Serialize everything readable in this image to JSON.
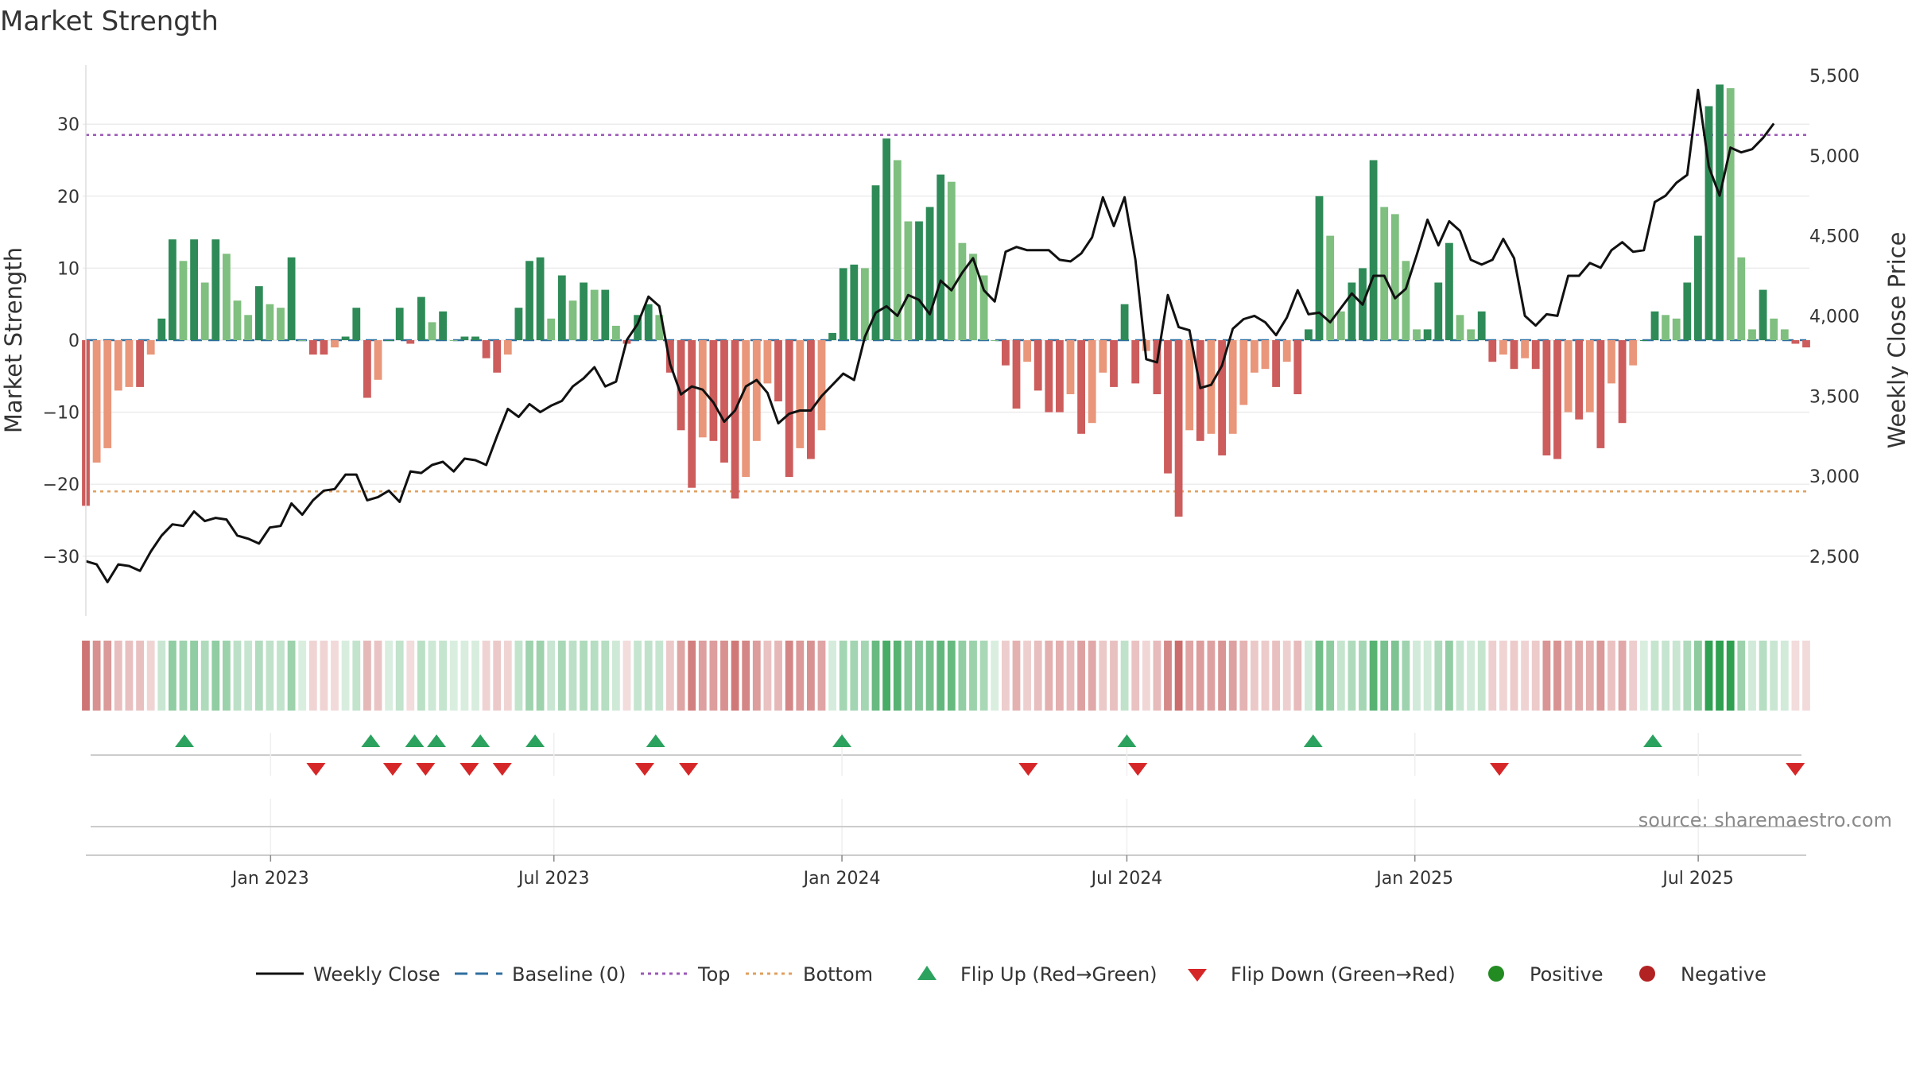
{
  "title": "Market Strength",
  "source": "source: sharemaestro.com",
  "colors": {
    "strong_green": "#2e8b57",
    "light_green": "#7fbf7f",
    "strong_red": "#cd5c5c",
    "light_red": "#e9967a",
    "top_line": "#9b59b6",
    "bottom_line": "#e0a060",
    "baseline": "#2f6f9f",
    "close_line": "#111111",
    "flip_up": "#2ca25f",
    "flip_down": "#d62728",
    "positive": "#228b22",
    "negative": "#b22222"
  },
  "legend": [
    {
      "label": "Weekly Close",
      "icon": "solid-line-icon"
    },
    {
      "label": "Baseline (0)",
      "icon": "dashed-line-icon"
    },
    {
      "label": "Top",
      "icon": "dotted-line-icon"
    },
    {
      "label": "Bottom",
      "icon": "dotted-line-icon"
    },
    {
      "label": "Flip Up (Red→Green)",
      "icon": "triangle-up-icon"
    },
    {
      "label": "Flip Down (Green→Red)",
      "icon": "triangle-down-icon"
    },
    {
      "label": "Positive",
      "icon": "circle-icon"
    },
    {
      "label": "Negative",
      "icon": "circle-icon"
    }
  ],
  "chart_data": {
    "type": "bar",
    "x_type": "weekly dates",
    "x_start": "2022-09-05",
    "x_end": "2025-09-08",
    "xtick_labels": [
      "Jan 2023",
      "Jul 2023",
      "Jan 2024",
      "Jul 2024",
      "Jan 2025",
      "Jul 2025"
    ],
    "xtick_dates": [
      "2023-01-01",
      "2023-07-01",
      "2024-01-01",
      "2024-07-01",
      "2025-01-01",
      "2025-07-01"
    ],
    "ylabel": "Market Strength",
    "ylabel_right": "Weekly Close Price",
    "ylim": [
      -38,
      38
    ],
    "yticks": [
      -30,
      -20,
      -10,
      0,
      10,
      20,
      30
    ],
    "ylim_right": [
      2110,
      5620
    ],
    "yticks_right": [
      2500,
      3000,
      3500,
      4000,
      4500,
      5000,
      5500
    ],
    "top_level": 28.5,
    "bottom_level": -21,
    "grid": true,
    "legend_position": "bottom",
    "series": [
      {
        "name": "Market Strength",
        "type": "bar",
        "values": [
          -23,
          -17,
          -15,
          -7,
          -6.5,
          -6.5,
          -2,
          3,
          14,
          11,
          14,
          8,
          14,
          12,
          5.5,
          3.5,
          7.5,
          5,
          4.5,
          11.5,
          0,
          -2,
          -2,
          -1,
          0.5,
          4.5,
          -8,
          -5.5,
          0,
          4.5,
          -0.5,
          6,
          2.5,
          4,
          0,
          0.5,
          0.5,
          -2.5,
          -4.5,
          -2,
          4.5,
          11,
          11.5,
          3,
          9,
          5.5,
          8,
          7,
          7,
          2,
          -0.5,
          3.5,
          5,
          3.5,
          -4.5,
          -12.5,
          -20.5,
          -13.5,
          -14,
          -17,
          -22,
          -19,
          -14,
          -6,
          -8.5,
          -19,
          -15,
          -16.5,
          -12.5,
          1,
          10,
          10.5,
          10,
          21.5,
          28,
          25,
          16.5,
          16.5,
          18.5,
          23,
          22,
          13.5,
          12,
          9,
          0,
          -3.5,
          -9.5,
          -3,
          -7,
          -10,
          -10,
          -7.5,
          -13,
          -11.5,
          -4.5,
          -6.5,
          5,
          -6,
          -1.5,
          -7.5,
          -18.5,
          -24.5,
          -12.5,
          -14,
          -13,
          -16,
          -13,
          -9,
          -4.5,
          -4,
          -6.5,
          -3,
          -7.5,
          1.5,
          20,
          14.5,
          4,
          8,
          10,
          25,
          18.5,
          17.5,
          11,
          1.5,
          1.5,
          8,
          13.5,
          3.5,
          1.5,
          4,
          -3,
          -2,
          -4,
          -2.5,
          -4,
          -16,
          -16.5,
          -10,
          -11,
          -10,
          -15,
          -6,
          -11.5,
          -3.5,
          0,
          4,
          3.5,
          3,
          8,
          14.5,
          32.5,
          35.5,
          35,
          11.5,
          1.5,
          7,
          3,
          1.5,
          -0.5,
          -1
        ]
      },
      {
        "name": "Weekly Close",
        "type": "line",
        "axis": "right",
        "values": [
          2470,
          2450,
          2340,
          2450,
          2440,
          2410,
          2530,
          2630,
          2700,
          2690,
          2780,
          2720,
          2740,
          2730,
          2630,
          2610,
          2580,
          2680,
          2690,
          2830,
          2760,
          2850,
          2910,
          2920,
          3010,
          3010,
          2850,
          2870,
          2910,
          2840,
          3030,
          3020,
          3070,
          3090,
          3030,
          3110,
          3100,
          3070,
          3250,
          3420,
          3370,
          3450,
          3400,
          3440,
          3470,
          3560,
          3610,
          3680,
          3560,
          3590,
          3850,
          3950,
          4120,
          4060,
          3700,
          3510,
          3560,
          3540,
          3460,
          3340,
          3410,
          3560,
          3600,
          3520,
          3330,
          3390,
          3410,
          3410,
          3500,
          3570,
          3640,
          3600,
          3870,
          4020,
          4060,
          4000,
          4130,
          4100,
          4010,
          4220,
          4160,
          4270,
          4360,
          4160,
          4090,
          4400,
          4430,
          4410,
          4410,
          4410,
          4350,
          4340,
          4390,
          4490,
          4740,
          4560,
          4740,
          4350,
          3730,
          3710,
          4130,
          3930,
          3910,
          3550,
          3570,
          3690,
          3920,
          3980,
          4000,
          3960,
          3880,
          3990,
          4160,
          4010,
          4020,
          3960,
          4050,
          4140,
          4070,
          4250,
          4250,
          4110,
          4170,
          4380,
          4600,
          4440,
          4590,
          4530,
          4350,
          4320,
          4350,
          4480,
          4360,
          4000,
          3940,
          4010,
          4000,
          4250,
          4250,
          4330,
          4300,
          4410,
          4460,
          4400,
          4410,
          4710,
          4750,
          4830,
          4880,
          5410,
          4930,
          4750,
          5050,
          5020,
          5040,
          5110,
          5200
        ]
      }
    ],
    "flip_up_dates": [
      "2022-11-07",
      "2023-03-06",
      "2023-04-03",
      "2023-04-17",
      "2023-05-15",
      "2023-06-19",
      "2023-09-04",
      "2024-01-01",
      "2024-07-01",
      "2024-10-28",
      "2025-06-02"
    ],
    "flip_down_dates": [
      "2023-01-30",
      "2023-03-20",
      "2023-04-10",
      "2023-05-08",
      "2023-05-29",
      "2023-08-28",
      "2023-09-25",
      "2024-04-29",
      "2024-07-08",
      "2025-02-24",
      "2025-09-01"
    ]
  }
}
